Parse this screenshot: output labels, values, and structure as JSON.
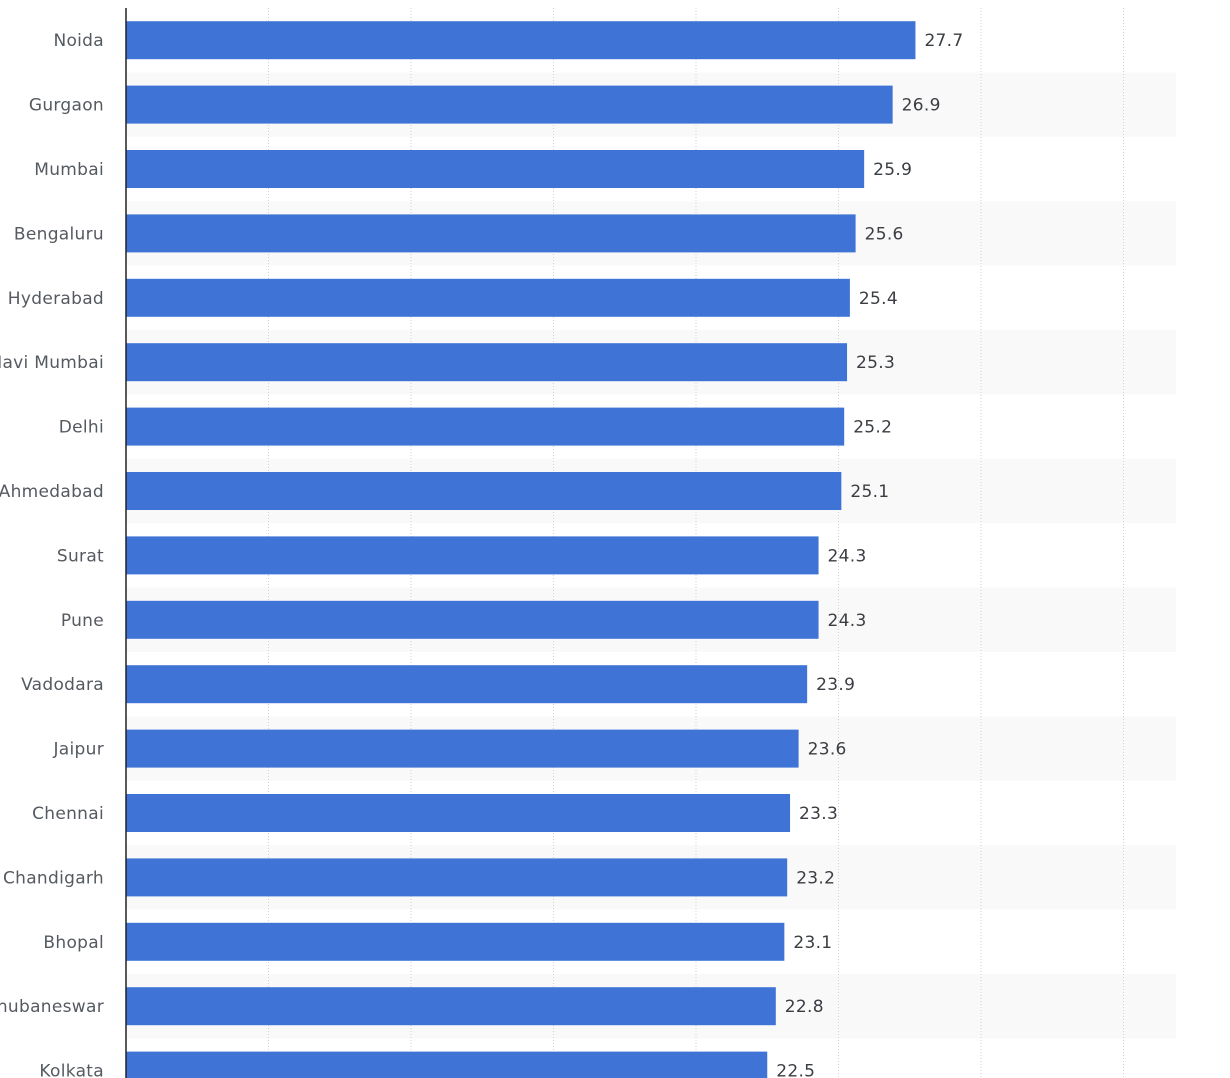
{
  "chart_data": {
    "type": "bar",
    "orientation": "horizontal",
    "categories": [
      "Noida",
      "Gurgaon",
      "Mumbai",
      "Bengaluru",
      "Hyderabad",
      "Navi Mumbai",
      "Delhi",
      "Ahmedabad",
      "Surat",
      "Pune",
      "Vadodara",
      "Jaipur",
      "Chennai",
      "Chandigarh",
      "Bhopal",
      "Bhubaneswar",
      "Kolkata"
    ],
    "values": [
      27.7,
      26.9,
      25.9,
      25.6,
      25.4,
      25.3,
      25.2,
      25.1,
      24.3,
      24.3,
      23.9,
      23.6,
      23.3,
      23.2,
      23.1,
      22.8,
      22.5
    ],
    "title": "",
    "xlabel": "",
    "ylabel": "",
    "xlim": [
      0,
      35
    ],
    "grid": true,
    "legend": "none",
    "bar_color": "#3f74d6",
    "stripe_color": "#f9f9f9",
    "grid_color": "#d2d2d2"
  }
}
